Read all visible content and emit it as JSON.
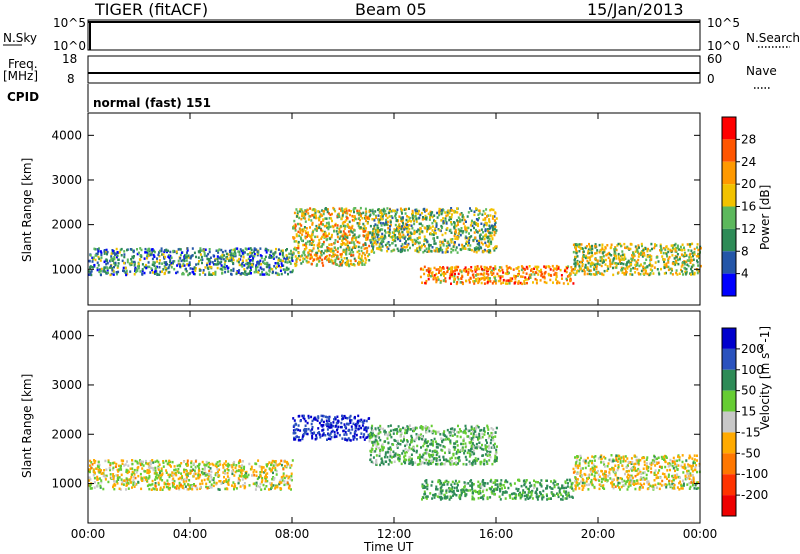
{
  "header": {
    "station": "TIGER (fitACF)",
    "beam": "Beam 05",
    "date": "15/Jan/2013"
  },
  "panels": {
    "nsky": {
      "label": "N.Sky",
      "ticks_left": [
        "10^5",
        "10^0"
      ],
      "ticks_right": [
        "10^5",
        "10^0"
      ],
      "right_label": "N.Search"
    },
    "freq": {
      "label_top": "Freq.",
      "label_bottom": "[MHz]",
      "ticks_left": [
        "18",
        "8"
      ],
      "ticks_right": [
        "60",
        "0"
      ],
      "right_label": "Nave"
    },
    "cpid": {
      "label": "CPID",
      "value": "normal (fast) 151"
    }
  },
  "colors": {
    "power": [
      "#0000ff",
      "#2456a8",
      "#2e8b57",
      "#5cb85c",
      "#f2c200",
      "#ff9900",
      "#ff5500",
      "#ff0000"
    ],
    "velocity": [
      "#0000cc",
      "#2a52be",
      "#2e8b57",
      "#66cc33",
      "#c8c8c8",
      "#ffaa00",
      "#ff7700",
      "#ff3300",
      "#ee0000"
    ]
  },
  "chart_data": [
    {
      "type": "heatmap",
      "title": "Power",
      "xlabel": "Time UT",
      "ylabel": "Slant Range [km]",
      "x_ticks": [
        "00:00",
        "04:00",
        "08:00",
        "12:00",
        "16:00",
        "20:00",
        "00:00"
      ],
      "y_ticks": [
        "1000",
        "2000",
        "3000",
        "4000"
      ],
      "ylim": [
        200,
        4500
      ],
      "colorbar": {
        "label": "Power [dB]",
        "ticks": [
          "28",
          "24",
          "20",
          "16",
          "12",
          "8",
          "4"
        ]
      },
      "echo_bands": [
        {
          "t_start": 0,
          "t_end": 8,
          "range_low": 900,
          "range_high": 1500,
          "power": 10
        },
        {
          "t_start": 8,
          "t_end": 11,
          "range_low": 1100,
          "range_high": 2400,
          "power": 18
        },
        {
          "t_start": 11,
          "t_end": 16,
          "range_low": 1400,
          "range_high": 2400,
          "power": 14
        },
        {
          "t_start": 13,
          "t_end": 19,
          "range_low": 700,
          "range_high": 1100,
          "power": 22
        },
        {
          "t_start": 19,
          "t_end": 24,
          "range_low": 900,
          "range_high": 1600,
          "power": 16
        }
      ]
    },
    {
      "type": "heatmap",
      "title": "Velocity",
      "xlabel": "Time UT",
      "ylabel": "Slant Range [km]",
      "x_ticks": [
        "00:00",
        "04:00",
        "08:00",
        "12:00",
        "16:00",
        "20:00",
        "00:00"
      ],
      "y_ticks": [
        "1000",
        "2000",
        "3000",
        "4000"
      ],
      "ylim": [
        200,
        4500
      ],
      "colorbar": {
        "label": "Velocity [m s^-1]",
        "ticks": [
          "200",
          "100",
          "50",
          "15",
          "-15",
          "-50",
          "-100",
          "-200"
        ]
      },
      "echo_bands": [
        {
          "t_start": 0,
          "t_end": 8,
          "range_low": 900,
          "range_high": 1500,
          "velocity": 0
        },
        {
          "t_start": 8,
          "t_end": 11,
          "range_low": 1900,
          "range_high": 2400,
          "velocity": 150
        },
        {
          "t_start": 11,
          "t_end": 16,
          "range_low": 1400,
          "range_high": 2200,
          "velocity": 30
        },
        {
          "t_start": 13,
          "t_end": 19,
          "range_low": 700,
          "range_high": 1100,
          "velocity": 40
        },
        {
          "t_start": 19,
          "t_end": 24,
          "range_low": 900,
          "range_high": 1600,
          "velocity": 0
        }
      ]
    }
  ]
}
